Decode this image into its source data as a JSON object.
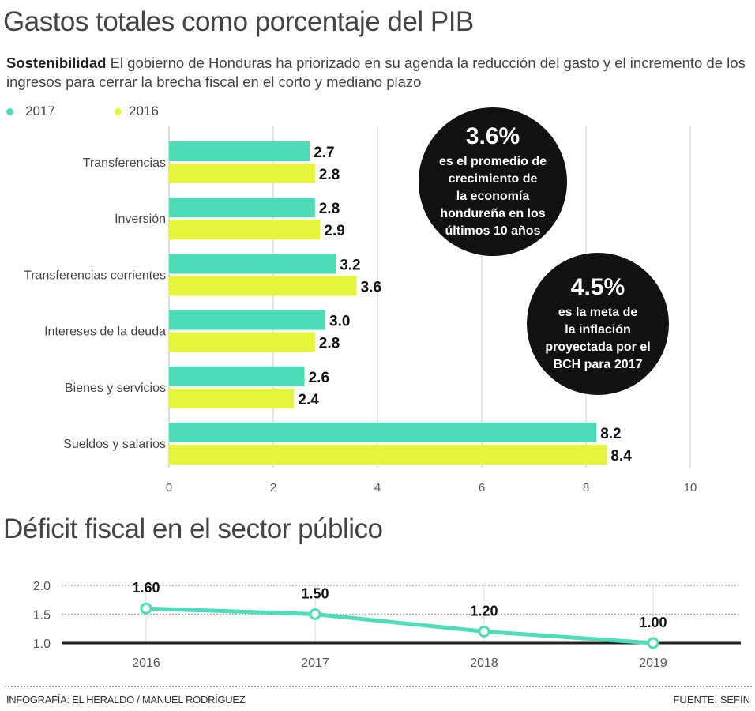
{
  "header": {
    "title": "Gastos totales como porcentaje del PIB",
    "subtitle_bold": "Sostenibilidad",
    "subtitle_text": " El gobierno de Honduras ha priorizado en su agenda la reducción del gasto y el incremento de los ingresos para cerrar la brecha fiscal en el corto y mediano plazo"
  },
  "colors": {
    "2017": "#4fdcb8",
    "2016": "#e6f53c",
    "bubble": "#111111",
    "line": "#4fdcb8"
  },
  "callouts": [
    {
      "value": "3.6%",
      "text": [
        "es el promedio de",
        "crecimiento de",
        "la economía",
        "hondureña en los",
        "últimos 10 años"
      ]
    },
    {
      "value": "4.5%",
      "text": [
        "es la meta de",
        "la inflación",
        "proyectada por el",
        "BCH para 2017"
      ]
    }
  ],
  "chart_data": [
    {
      "type": "bar",
      "orientation": "horizontal",
      "title": "Gastos totales como porcentaje del PIB",
      "categories": [
        "Transferencias",
        "Inversión",
        "Transferencias corrientes",
        "Intereses de la deuda",
        "Bienes y servicios",
        "Sueldos y salarios"
      ],
      "series": [
        {
          "name": "2017",
          "values": [
            2.7,
            2.8,
            3.2,
            3.0,
            2.6,
            8.2
          ],
          "labels": [
            "2.7",
            "2.8",
            "3.2",
            "3.0",
            "2.6",
            "8.2"
          ]
        },
        {
          "name": "2016",
          "values": [
            2.8,
            2.9,
            3.6,
            2.8,
            2.4,
            8.4
          ],
          "labels": [
            "2.8",
            "2.9",
            "3.6",
            "2.8",
            "2.4",
            "8.4"
          ]
        }
      ],
      "xlim": [
        0,
        10
      ],
      "xticks": [
        "0",
        "2",
        "4",
        "6",
        "8",
        "10"
      ],
      "grid": true,
      "legend": "top-left"
    },
    {
      "type": "line",
      "title": "Déficit fiscal en el sector público",
      "x": [
        "2016",
        "2017",
        "2018",
        "2019"
      ],
      "values": [
        1.6,
        1.5,
        1.2,
        1.0
      ],
      "labels": [
        "1.60",
        "1.50",
        "1.20",
        "1.00"
      ],
      "ylim": [
        1.0,
        2.0
      ],
      "yticks": [
        "2.0",
        "1.5",
        "1.0"
      ],
      "grid": true
    }
  ],
  "footer": {
    "credit": "INFOGRAFÍA: EL HERALDO / MANUEL RODRÍGUEZ",
    "source": "FUENTE: SEFIN"
  }
}
